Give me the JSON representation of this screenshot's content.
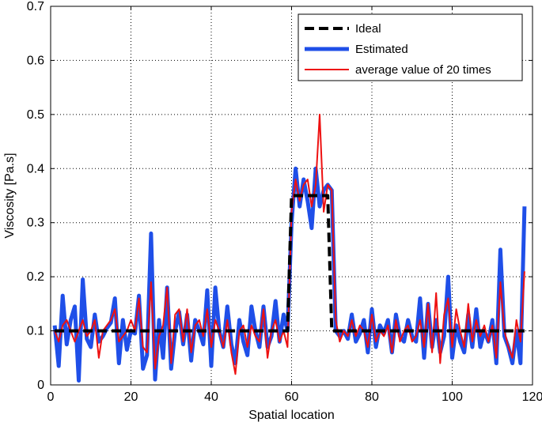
{
  "chart_data": {
    "type": "line",
    "xlabel": "Spatial location",
    "ylabel": "Viscosity [Pa.s]",
    "xlim": [
      0,
      120
    ],
    "ylim": [
      0,
      0.7
    ],
    "xticks": [
      0,
      20,
      40,
      60,
      80,
      100,
      120
    ],
    "yticks": [
      0,
      0.1,
      0.2,
      0.3,
      0.4,
      0.5,
      0.6,
      0.7
    ],
    "grid": true,
    "legend_position": "top-right",
    "series": [
      {
        "name": "Ideal",
        "color": "#000000",
        "style": "dashed",
        "x": [
          1,
          59,
          60,
          69,
          70,
          118
        ],
        "y": [
          0.1,
          0.1,
          0.35,
          0.35,
          0.1,
          0.1
        ]
      },
      {
        "name": "Estimated",
        "color": "#1f4fe8",
        "style": "solid-thick",
        "x": [
          1,
          2,
          3,
          4,
          5,
          6,
          7,
          8,
          9,
          10,
          11,
          12,
          13,
          14,
          15,
          16,
          17,
          18,
          19,
          20,
          21,
          22,
          23,
          24,
          25,
          26,
          27,
          28,
          29,
          30,
          31,
          32,
          33,
          34,
          35,
          36,
          37,
          38,
          39,
          40,
          41,
          42,
          43,
          44,
          45,
          46,
          47,
          48,
          49,
          50,
          51,
          52,
          53,
          54,
          55,
          56,
          57,
          58,
          59,
          60,
          61,
          62,
          63,
          64,
          65,
          66,
          67,
          68,
          69,
          70,
          71,
          72,
          73,
          74,
          75,
          76,
          77,
          78,
          79,
          80,
          81,
          82,
          83,
          84,
          85,
          86,
          87,
          88,
          89,
          90,
          91,
          92,
          93,
          94,
          95,
          96,
          97,
          98,
          99,
          100,
          101,
          102,
          103,
          104,
          105,
          106,
          107,
          108,
          109,
          110,
          111,
          112,
          113,
          114,
          115,
          116,
          117,
          118
        ],
        "y": [
          0.11,
          0.035,
          0.165,
          0.075,
          0.12,
          0.145,
          0.008,
          0.195,
          0.085,
          0.07,
          0.13,
          0.08,
          0.09,
          0.105,
          0.115,
          0.16,
          0.04,
          0.12,
          0.065,
          0.1,
          0.095,
          0.165,
          0.03,
          0.055,
          0.28,
          0.01,
          0.12,
          0.05,
          0.18,
          0.03,
          0.1,
          0.135,
          0.075,
          0.13,
          0.045,
          0.12,
          0.1,
          0.075,
          0.175,
          0.035,
          0.18,
          0.1,
          0.07,
          0.145,
          0.075,
          0.04,
          0.12,
          0.08,
          0.055,
          0.145,
          0.1,
          0.07,
          0.145,
          0.07,
          0.09,
          0.155,
          0.08,
          0.13,
          0.1,
          0.3,
          0.4,
          0.33,
          0.38,
          0.34,
          0.29,
          0.4,
          0.33,
          0.36,
          0.37,
          0.36,
          0.1,
          0.09,
          0.1,
          0.085,
          0.13,
          0.08,
          0.095,
          0.12,
          0.06,
          0.14,
          0.07,
          0.11,
          0.095,
          0.12,
          0.06,
          0.13,
          0.09,
          0.08,
          0.12,
          0.09,
          0.08,
          0.16,
          0.05,
          0.15,
          0.07,
          0.12,
          0.06,
          0.09,
          0.2,
          0.05,
          0.11,
          0.08,
          0.06,
          0.13,
          0.07,
          0.14,
          0.07,
          0.1,
          0.08,
          0.12,
          0.04,
          0.25,
          0.09,
          0.07,
          0.04,
          0.1,
          0.04,
          0.33
        ]
      },
      {
        "name": "average value of 20 times",
        "color": "#ee1111",
        "style": "solid",
        "x": [
          1,
          2,
          3,
          4,
          5,
          6,
          7,
          8,
          9,
          10,
          11,
          12,
          13,
          14,
          15,
          16,
          17,
          18,
          19,
          20,
          21,
          22,
          23,
          24,
          25,
          26,
          27,
          28,
          29,
          30,
          31,
          32,
          33,
          34,
          35,
          36,
          37,
          38,
          39,
          40,
          41,
          42,
          43,
          44,
          45,
          46,
          47,
          48,
          49,
          50,
          51,
          52,
          53,
          54,
          55,
          56,
          57,
          58,
          59,
          60,
          61,
          62,
          63,
          64,
          65,
          66,
          67,
          68,
          69,
          70,
          71,
          72,
          73,
          74,
          75,
          76,
          77,
          78,
          79,
          80,
          81,
          82,
          83,
          84,
          85,
          86,
          87,
          88,
          89,
          90,
          91,
          92,
          93,
          94,
          95,
          96,
          97,
          98,
          99,
          100,
          101,
          102,
          103,
          104,
          105,
          106,
          107,
          108,
          109,
          110,
          111,
          112,
          113,
          114,
          115,
          116,
          117,
          118
        ],
        "y": [
          0.1,
          0.08,
          0.11,
          0.12,
          0.1,
          0.08,
          0.1,
          0.12,
          0.09,
          0.1,
          0.12,
          0.05,
          0.1,
          0.11,
          0.12,
          0.14,
          0.08,
          0.09,
          0.1,
          0.12,
          0.1,
          0.16,
          0.07,
          0.06,
          0.19,
          0.03,
          0.09,
          0.11,
          0.18,
          0.04,
          0.13,
          0.14,
          0.08,
          0.14,
          0.06,
          0.11,
          0.12,
          0.09,
          0.14,
          0.07,
          0.12,
          0.1,
          0.07,
          0.12,
          0.06,
          0.02,
          0.1,
          0.11,
          0.07,
          0.11,
          0.09,
          0.08,
          0.14,
          0.05,
          0.1,
          0.12,
          0.08,
          0.1,
          0.07,
          0.32,
          0.38,
          0.34,
          0.37,
          0.38,
          0.33,
          0.37,
          0.5,
          0.32,
          0.37,
          0.36,
          0.12,
          0.08,
          0.1,
          0.09,
          0.12,
          0.09,
          0.11,
          0.1,
          0.07,
          0.13,
          0.08,
          0.1,
          0.09,
          0.11,
          0.06,
          0.12,
          0.08,
          0.1,
          0.11,
          0.08,
          0.09,
          0.12,
          0.07,
          0.15,
          0.06,
          0.17,
          0.04,
          0.13,
          0.16,
          0.07,
          0.14,
          0.1,
          0.07,
          0.15,
          0.08,
          0.12,
          0.09,
          0.11,
          0.08,
          0.11,
          0.05,
          0.19,
          0.1,
          0.07,
          0.05,
          0.12,
          0.08,
          0.21
        ]
      }
    ]
  }
}
